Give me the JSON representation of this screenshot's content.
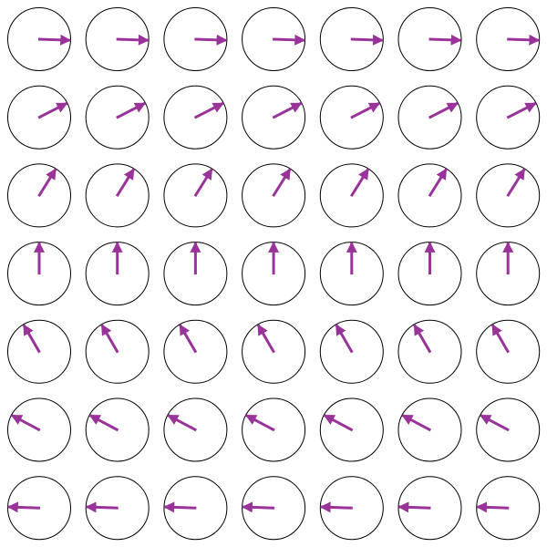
{
  "grid": {
    "rows": 7,
    "cols": 7,
    "row_angles_deg": [
      -2,
      27,
      58,
      90,
      120,
      152,
      178
    ],
    "arrow_color": "#993399",
    "circle_color": "#000000",
    "background": "#ffffff",
    "arrow_icon": "arrow-icon",
    "circle_icon": "circle-outline-icon"
  }
}
